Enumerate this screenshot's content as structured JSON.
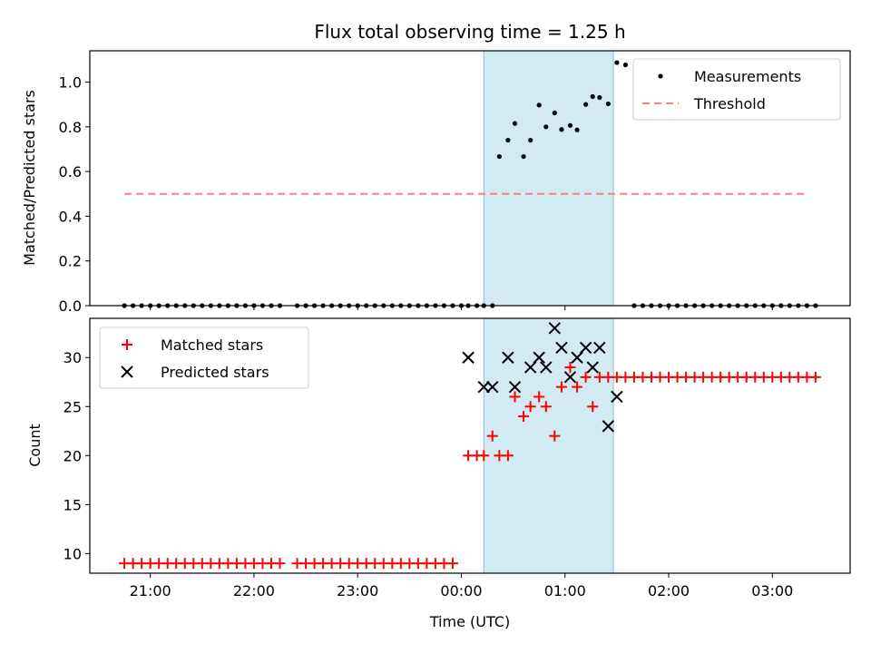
{
  "chart_data": [
    {
      "type": "scatter",
      "title": "Flux total observing time = 1.25 h",
      "xlabel": "",
      "ylabel": "Matched/Predicted stars",
      "xlim": [
        "20:25",
        "03:45"
      ],
      "ylim": [
        0,
        1.14
      ],
      "yticks": [
        "0.0",
        "0.2",
        "0.4",
        "0.6",
        "0.8",
        "1.0"
      ],
      "shaded_region": [
        "00:13",
        "01:28"
      ],
      "shade_color": "#add8e6",
      "legend_position": "upper right",
      "series": [
        {
          "name": "Measurements",
          "marker": "dot",
          "color": "#000000",
          "times": [
            "20:45",
            "20:50",
            "20:55",
            "21:00",
            "21:05",
            "21:10",
            "21:15",
            "21:20",
            "21:25",
            "21:30",
            "21:35",
            "21:40",
            "21:45",
            "21:50",
            "21:55",
            "22:00",
            "22:05",
            "22:10",
            "22:15",
            "22:25",
            "22:30",
            "22:35",
            "22:40",
            "22:45",
            "22:50",
            "22:55",
            "23:00",
            "23:05",
            "23:10",
            "23:15",
            "23:20",
            "23:25",
            "23:30",
            "23:35",
            "23:40",
            "23:45",
            "23:50",
            "23:55",
            "00:00",
            "00:04",
            "00:09",
            "00:13",
            "00:18",
            "00:22",
            "00:27",
            "00:31",
            "00:36",
            "00:40",
            "00:45",
            "00:49",
            "00:54",
            "00:58",
            "01:03",
            "01:07",
            "01:12",
            "01:16",
            "01:20",
            "01:25",
            "01:30",
            "01:35",
            "01:40",
            "01:45",
            "01:50",
            "01:55",
            "02:00",
            "02:05",
            "02:10",
            "02:15",
            "02:20",
            "02:25",
            "02:30",
            "02:35",
            "02:40",
            "02:45",
            "02:50",
            "02:55",
            "03:00",
            "03:05",
            "03:10",
            "03:15",
            "03:20",
            "03:25"
          ],
          "values": [
            0,
            0,
            0,
            0,
            0,
            0,
            0,
            0,
            0,
            0,
            0,
            0,
            0,
            0,
            0,
            0,
            0,
            0,
            0,
            0,
            0,
            0,
            0,
            0,
            0,
            0,
            0,
            0,
            0,
            0,
            0,
            0,
            0,
            0,
            0,
            0,
            0,
            0,
            0,
            0,
            0,
            0,
            0,
            0.667,
            0.74,
            0.815,
            0.667,
            0.74,
            0.897,
            0.8,
            0.862,
            0.788,
            0.806,
            0.786,
            0.9,
            0.935,
            0.931,
            0.903,
            1.087,
            1.077,
            0,
            0,
            0,
            0,
            0,
            0,
            0,
            0,
            0,
            0,
            0,
            0,
            0,
            0,
            0,
            0,
            0,
            0,
            0,
            0,
            0,
            0
          ]
        },
        {
          "name": "Threshold",
          "line": "dashed",
          "color": "#ff7f7f",
          "times": [
            "20:45",
            "03:20"
          ],
          "values": [
            0.5,
            0.5
          ]
        }
      ]
    },
    {
      "type": "scatter",
      "title": "",
      "xlabel": "Time (UTC)",
      "ylabel": "Count",
      "xlim": [
        "20:25",
        "03:45"
      ],
      "ylim": [
        8,
        34
      ],
      "xticks": [
        "21:00",
        "22:00",
        "23:00",
        "00:00",
        "01:00",
        "02:00",
        "03:00"
      ],
      "yticks": [
        "10",
        "15",
        "20",
        "25",
        "30"
      ],
      "shaded_region": [
        "00:13",
        "01:28"
      ],
      "shade_color": "#add8e6",
      "legend_position": "upper left",
      "series": [
        {
          "name": "Matched stars",
          "marker": "plus",
          "color": "#ff0000",
          "times": [
            "20:45",
            "20:50",
            "20:55",
            "21:00",
            "21:05",
            "21:10",
            "21:15",
            "21:20",
            "21:25",
            "21:30",
            "21:35",
            "21:40",
            "21:45",
            "21:50",
            "21:55",
            "22:00",
            "22:05",
            "22:10",
            "22:15",
            "22:25",
            "22:30",
            "22:35",
            "22:40",
            "22:45",
            "22:50",
            "22:55",
            "23:00",
            "23:05",
            "23:10",
            "23:15",
            "23:20",
            "23:25",
            "23:30",
            "23:35",
            "23:40",
            "23:45",
            "23:50",
            "23:55",
            "00:04",
            "00:09",
            "00:13",
            "00:18",
            "00:22",
            "00:27",
            "00:31",
            "00:36",
            "00:40",
            "00:45",
            "00:49",
            "00:54",
            "00:58",
            "01:03",
            "01:07",
            "01:12",
            "01:16",
            "01:20",
            "01:25",
            "01:30",
            "01:35",
            "01:40",
            "01:45",
            "01:50",
            "01:55",
            "02:00",
            "02:05",
            "02:10",
            "02:15",
            "02:20",
            "02:25",
            "02:30",
            "02:35",
            "02:40",
            "02:45",
            "02:50",
            "02:55",
            "03:00",
            "03:05",
            "03:10",
            "03:15",
            "03:20",
            "03:25"
          ],
          "values": [
            9,
            9,
            9,
            9,
            9,
            9,
            9,
            9,
            9,
            9,
            9,
            9,
            9,
            9,
            9,
            9,
            9,
            9,
            9,
            9,
            9,
            9,
            9,
            9,
            9,
            9,
            9,
            9,
            9,
            9,
            9,
            9,
            9,
            9,
            9,
            9,
            9,
            9,
            20,
            20,
            20,
            22,
            20,
            20,
            26,
            24,
            25,
            26,
            25,
            22,
            27,
            29,
            27,
            28,
            25,
            28,
            28,
            28,
            28,
            28,
            28,
            28,
            28,
            28,
            28,
            28,
            28,
            28,
            28,
            28,
            28,
            28,
            28,
            28,
            28,
            28,
            28,
            28,
            28,
            28,
            28
          ]
        },
        {
          "name": "Predicted stars",
          "marker": "x",
          "color": "#000000",
          "times": [
            "00:04",
            "00:13",
            "00:18",
            "00:27",
            "00:31",
            "00:40",
            "00:45",
            "00:49",
            "00:54",
            "00:58",
            "01:03",
            "01:07",
            "01:12",
            "01:16",
            "01:20",
            "01:25",
            "01:30"
          ],
          "values": [
            30,
            27,
            27,
            30,
            27,
            29,
            30,
            29,
            33,
            31,
            28,
            30,
            31,
            29,
            31,
            23,
            26
          ]
        }
      ]
    }
  ]
}
